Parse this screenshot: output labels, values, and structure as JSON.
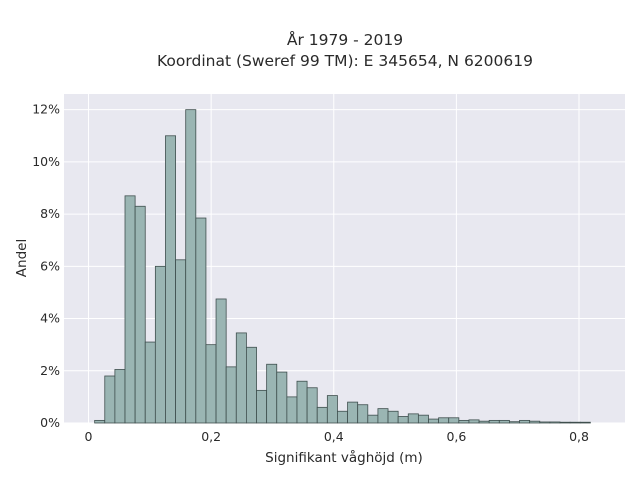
{
  "chart_data": {
    "type": "bar",
    "title_line1": "År 1979 - 2019",
    "title_line2": "Koordinat (Sweref 99 TM): E 345654, N 6200619",
    "xlabel": "Signifikant våghöjd (m)",
    "ylabel": "Andel",
    "xlim": [
      -0.04,
      0.875
    ],
    "ylim": [
      0,
      12.6
    ],
    "grid": true,
    "x_ticks": [
      {
        "value": 0,
        "label": "0"
      },
      {
        "value": 0.2,
        "label": "0,2"
      },
      {
        "value": 0.4,
        "label": "0,4"
      },
      {
        "value": 0.6,
        "label": "0,6"
      },
      {
        "value": 0.8,
        "label": "0,8"
      }
    ],
    "y_ticks": [
      {
        "value": 0,
        "label": "0%"
      },
      {
        "value": 2,
        "label": "2%"
      },
      {
        "value": 4,
        "label": "4%"
      },
      {
        "value": 6,
        "label": "6%"
      },
      {
        "value": 8,
        "label": "8%"
      },
      {
        "value": 10,
        "label": "10%"
      },
      {
        "value": 12,
        "label": "12%"
      }
    ],
    "bin_width": 0.0165,
    "bin_start": 0.01,
    "values": [
      0.1,
      1.8,
      2.05,
      8.7,
      8.3,
      3.1,
      6.0,
      11.0,
      6.25,
      12.0,
      7.85,
      3.0,
      4.75,
      2.15,
      3.45,
      2.9,
      1.25,
      2.25,
      1.95,
      1.0,
      1.6,
      1.35,
      0.6,
      1.05,
      0.45,
      0.8,
      0.7,
      0.3,
      0.55,
      0.45,
      0.25,
      0.35,
      0.3,
      0.15,
      0.2,
      0.2,
      0.1,
      0.12,
      0.07,
      0.1,
      0.1,
      0.05,
      0.1,
      0.07,
      0.04,
      0.04,
      0.03,
      0.03,
      0.03
    ]
  }
}
